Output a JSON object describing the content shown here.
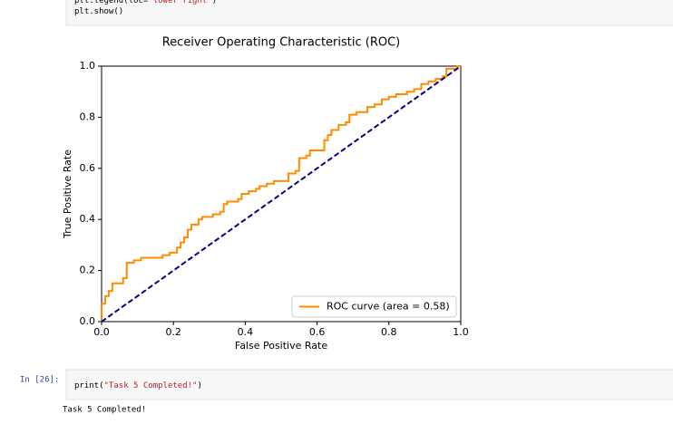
{
  "cell_1": {
    "lines": [
      [
        "plt.legend(loc=",
        "\"lower right\"",
        ")"
      ],
      [
        "plt.show()"
      ]
    ]
  },
  "chart_data": {
    "type": "line",
    "title": "Receiver Operating Characteristic (ROC)",
    "xlabel": "False Positive Rate",
    "ylabel": "True Positive Rate",
    "xlim": [
      0,
      1
    ],
    "ylim": [
      0,
      1
    ],
    "xticks": [
      {
        "value": 0,
        "label": "0.0"
      },
      0.2,
      0.4,
      0.6,
      0.8,
      {
        "value": 1,
        "label": "1.0"
      }
    ],
    "yticks": [
      {
        "value": 0,
        "label": "0.0"
      },
      0.2,
      0.4,
      0.6,
      0.8,
      {
        "value": 1,
        "label": "1.0"
      }
    ],
    "legend": "lower right",
    "series": [
      {
        "name": "ROC curve (area = 0.58)",
        "color": "#ff8c00",
        "step": "post",
        "x": [
          0,
          0,
          0.01,
          0.02,
          0.03,
          0.06,
          0.06,
          0.07,
          0.07,
          0.09,
          0.11,
          0.14,
          0.17,
          0.19,
          0.21,
          0.22,
          0.23,
          0.24,
          0.25,
          0.27,
          0.28,
          0.31,
          0.33,
          0.34,
          0.35,
          0.38,
          0.39,
          0.41,
          0.43,
          0.44,
          0.46,
          0.48,
          0.51,
          0.52,
          0.54,
          0.55,
          0.57,
          0.58,
          0.61,
          0.62,
          0.63,
          0.64,
          0.66,
          0.68,
          0.69,
          0.71,
          0.74,
          0.76,
          0.78,
          0.8,
          0.82,
          0.85,
          0.87,
          0.89,
          0.91,
          0.93,
          0.95,
          0.96,
          0.99,
          1.0
        ],
        "values": [
          0,
          0.07,
          0.1,
          0.12,
          0.15,
          0.15,
          0.17,
          0.17,
          0.23,
          0.24,
          0.25,
          0.25,
          0.26,
          0.27,
          0.29,
          0.31,
          0.33,
          0.36,
          0.38,
          0.4,
          0.41,
          0.42,
          0.43,
          0.46,
          0.47,
          0.48,
          0.5,
          0.51,
          0.52,
          0.53,
          0.54,
          0.55,
          0.55,
          0.58,
          0.59,
          0.64,
          0.65,
          0.67,
          0.67,
          0.71,
          0.73,
          0.75,
          0.77,
          0.78,
          0.81,
          0.82,
          0.84,
          0.85,
          0.87,
          0.88,
          0.89,
          0.9,
          0.91,
          0.93,
          0.94,
          0.95,
          0.96,
          0.99,
          1.0,
          1.0
        ]
      },
      {
        "color": "#000080",
        "dashed": true,
        "x": [
          0,
          1
        ],
        "values": [
          0,
          1
        ]
      }
    ]
  },
  "cell_2": {
    "prompt": "In [26]:",
    "lines": [
      [
        "print(",
        "\"Task 5 Completed!\"",
        ")"
      ]
    ],
    "output": "Task 5 Completed!"
  }
}
